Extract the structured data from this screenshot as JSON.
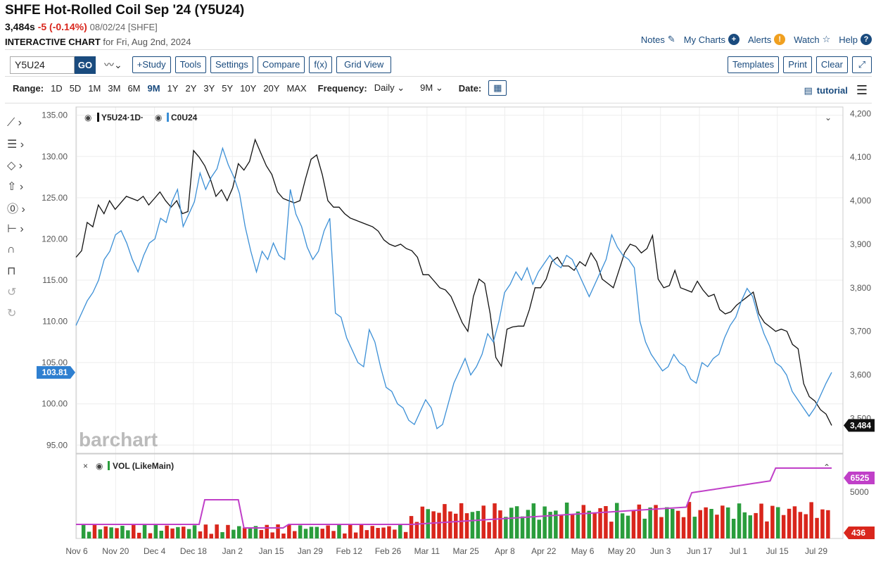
{
  "header": {
    "title": "SHFE Hot-Rolled Coil Sep '24 (Y5U24)",
    "last": "3,484s",
    "change": "-5 (-0.14%)",
    "date_exchange": "08/02/24 [SHFE]",
    "chart_label": "INTERACTIVE CHART",
    "chart_for": "for Fri, Aug 2nd, 2024"
  },
  "toplinks": {
    "notes": "Notes",
    "my_charts": "My Charts",
    "alerts": "Alerts",
    "watch": "Watch",
    "help": "Help"
  },
  "toolbar": {
    "symbol_value": "Y5U24",
    "go": "GO",
    "study": "+Study",
    "tools": "Tools",
    "settings": "Settings",
    "compare": "Compare",
    "fx": "f(x)",
    "grid_view": "Grid View",
    "templates": "Templates",
    "print": "Print",
    "clear": "Clear"
  },
  "rangebar": {
    "range_label": "Range:",
    "ranges": [
      "1D",
      "5D",
      "1M",
      "3M",
      "6M",
      "9M",
      "1Y",
      "2Y",
      "3Y",
      "5Y",
      "10Y",
      "20Y",
      "MAX"
    ],
    "active_range": "9M",
    "frequency_label": "Frequency:",
    "frequency_value": "Daily",
    "period_value": "9M",
    "date_label": "Date:",
    "tutorial": "tutorial"
  },
  "colors": {
    "accent": "#1a4b7e",
    "primary_line": "#111111",
    "compare_line": "#3b8fd6",
    "up_vol": "#2a9d3c",
    "down_vol": "#d9261c",
    "avg_vol": "#c040c8"
  },
  "chart_data": {
    "type": "line",
    "legend": [
      "Y5U24·1D·",
      "C0U24"
    ],
    "x_ticks": [
      "Nov 6",
      "Nov 20",
      "Dec 4",
      "Dec 18",
      "Jan 2",
      "Jan 15",
      "Jan 29",
      "Feb 12",
      "Feb 26",
      "Mar 11",
      "Mar 25",
      "Apr 8",
      "Apr 22",
      "May 6",
      "May 20",
      "Jun 3",
      "Jun 17",
      "Jul 1",
      "Jul 15",
      "Jul 29"
    ],
    "left_axis": {
      "ticks": [
        "135.00",
        "130.00",
        "125.00",
        "120.00",
        "115.00",
        "110.00",
        "105.00",
        "100.00",
        "95.00"
      ],
      "range": [
        94,
        136
      ],
      "last_label": "103.81"
    },
    "right_axis": {
      "ticks": [
        "4,200",
        "4,100",
        "4,000",
        "3,900",
        "3,800",
        "3,700",
        "3,600",
        "3,500"
      ],
      "range": [
        3420,
        4215
      ],
      "last_label": "3,484"
    },
    "series": [
      {
        "name": "Y5U24",
        "axis": "right",
        "values": [
          3870,
          3885,
          3950,
          3940,
          3990,
          3970,
          4000,
          3980,
          3995,
          4010,
          4005,
          4000,
          4010,
          3990,
          4005,
          4020,
          4000,
          3985,
          4000,
          3970,
          3975,
          4115,
          4100,
          4080,
          4050,
          4010,
          4025,
          4000,
          4030,
          4085,
          4070,
          4090,
          4140,
          4110,
          4080,
          4060,
          4020,
          4005,
          4000,
          3995,
          4000,
          4050,
          4095,
          4105,
          4060,
          4000,
          3985,
          3985,
          3970,
          3960,
          3955,
          3950,
          3945,
          3940,
          3930,
          3910,
          3900,
          3895,
          3900,
          3890,
          3885,
          3870,
          3830,
          3830,
          3815,
          3800,
          3795,
          3780,
          3750,
          3720,
          3700,
          3780,
          3820,
          3810,
          3740,
          3640,
          3620,
          3705,
          3710,
          3712,
          3712,
          3750,
          3800,
          3800,
          3820,
          3860,
          3870,
          3850,
          3850,
          3840,
          3860,
          3850,
          3880,
          3860,
          3820,
          3810,
          3800,
          3840,
          3880,
          3900,
          3895,
          3880,
          3890,
          3920,
          3820,
          3800,
          3805,
          3840,
          3800,
          3795,
          3790,
          3815,
          3795,
          3780,
          3785,
          3750,
          3740,
          3745,
          3760,
          3770,
          3780,
          3790,
          3740,
          3720,
          3710,
          3700,
          3705,
          3700,
          3670,
          3660,
          3580,
          3550,
          3540,
          3520,
          3510,
          3484
        ]
      },
      {
        "name": "C0U24",
        "axis": "left",
        "values": [
          109.5,
          111.0,
          112.5,
          113.5,
          115.0,
          117.5,
          118.5,
          120.5,
          121.0,
          119.5,
          117.5,
          116.0,
          118.0,
          119.5,
          120.0,
          122.5,
          122.0,
          124.5,
          126.0,
          121.5,
          123.0,
          124.5,
          128.0,
          126.0,
          127.5,
          128.5,
          131.0,
          129.0,
          127.5,
          125.5,
          121.5,
          118.5,
          116.0,
          118.5,
          117.5,
          119.5,
          118.0,
          117.5,
          126.0,
          123.0,
          121.5,
          119.0,
          117.5,
          118.5,
          121.0,
          122.5,
          111.0,
          110.5,
          108.0,
          106.5,
          105.0,
          104.5,
          109.0,
          107.5,
          104.5,
          102.0,
          101.5,
          100.0,
          99.5,
          98.0,
          97.5,
          99.0,
          100.5,
          99.5,
          97.0,
          97.5,
          100.0,
          102.5,
          104.0,
          105.5,
          103.5,
          104.5,
          106.0,
          108.5,
          107.5,
          110.0,
          113.5,
          114.5,
          116.0,
          115.0,
          116.5,
          114.5,
          116.0,
          117.0,
          118.0,
          117.0,
          116.5,
          118.0,
          117.5,
          116.0,
          114.5,
          113.0,
          114.5,
          116.0,
          117.5,
          120.5,
          119.0,
          118.0,
          117.5,
          116.5,
          110.0,
          107.5,
          106.0,
          105.0,
          104.0,
          104.5,
          106.0,
          105.0,
          104.5,
          103.0,
          102.5,
          105.0,
          104.5,
          105.5,
          106.0,
          108.0,
          109.5,
          110.5,
          112.5,
          114.0,
          113.0,
          110.5,
          108.5,
          107.0,
          105.0,
          104.5,
          103.5,
          101.5,
          100.5,
          99.5,
          98.5,
          99.5,
          101.0,
          102.5,
          103.81
        ]
      }
    ],
    "volume_panel": {
      "legend": "VOL (LikeMain)",
      "right_ticks": [
        "5000"
      ],
      "last_volume": "436",
      "last_avg": "6525"
    }
  }
}
